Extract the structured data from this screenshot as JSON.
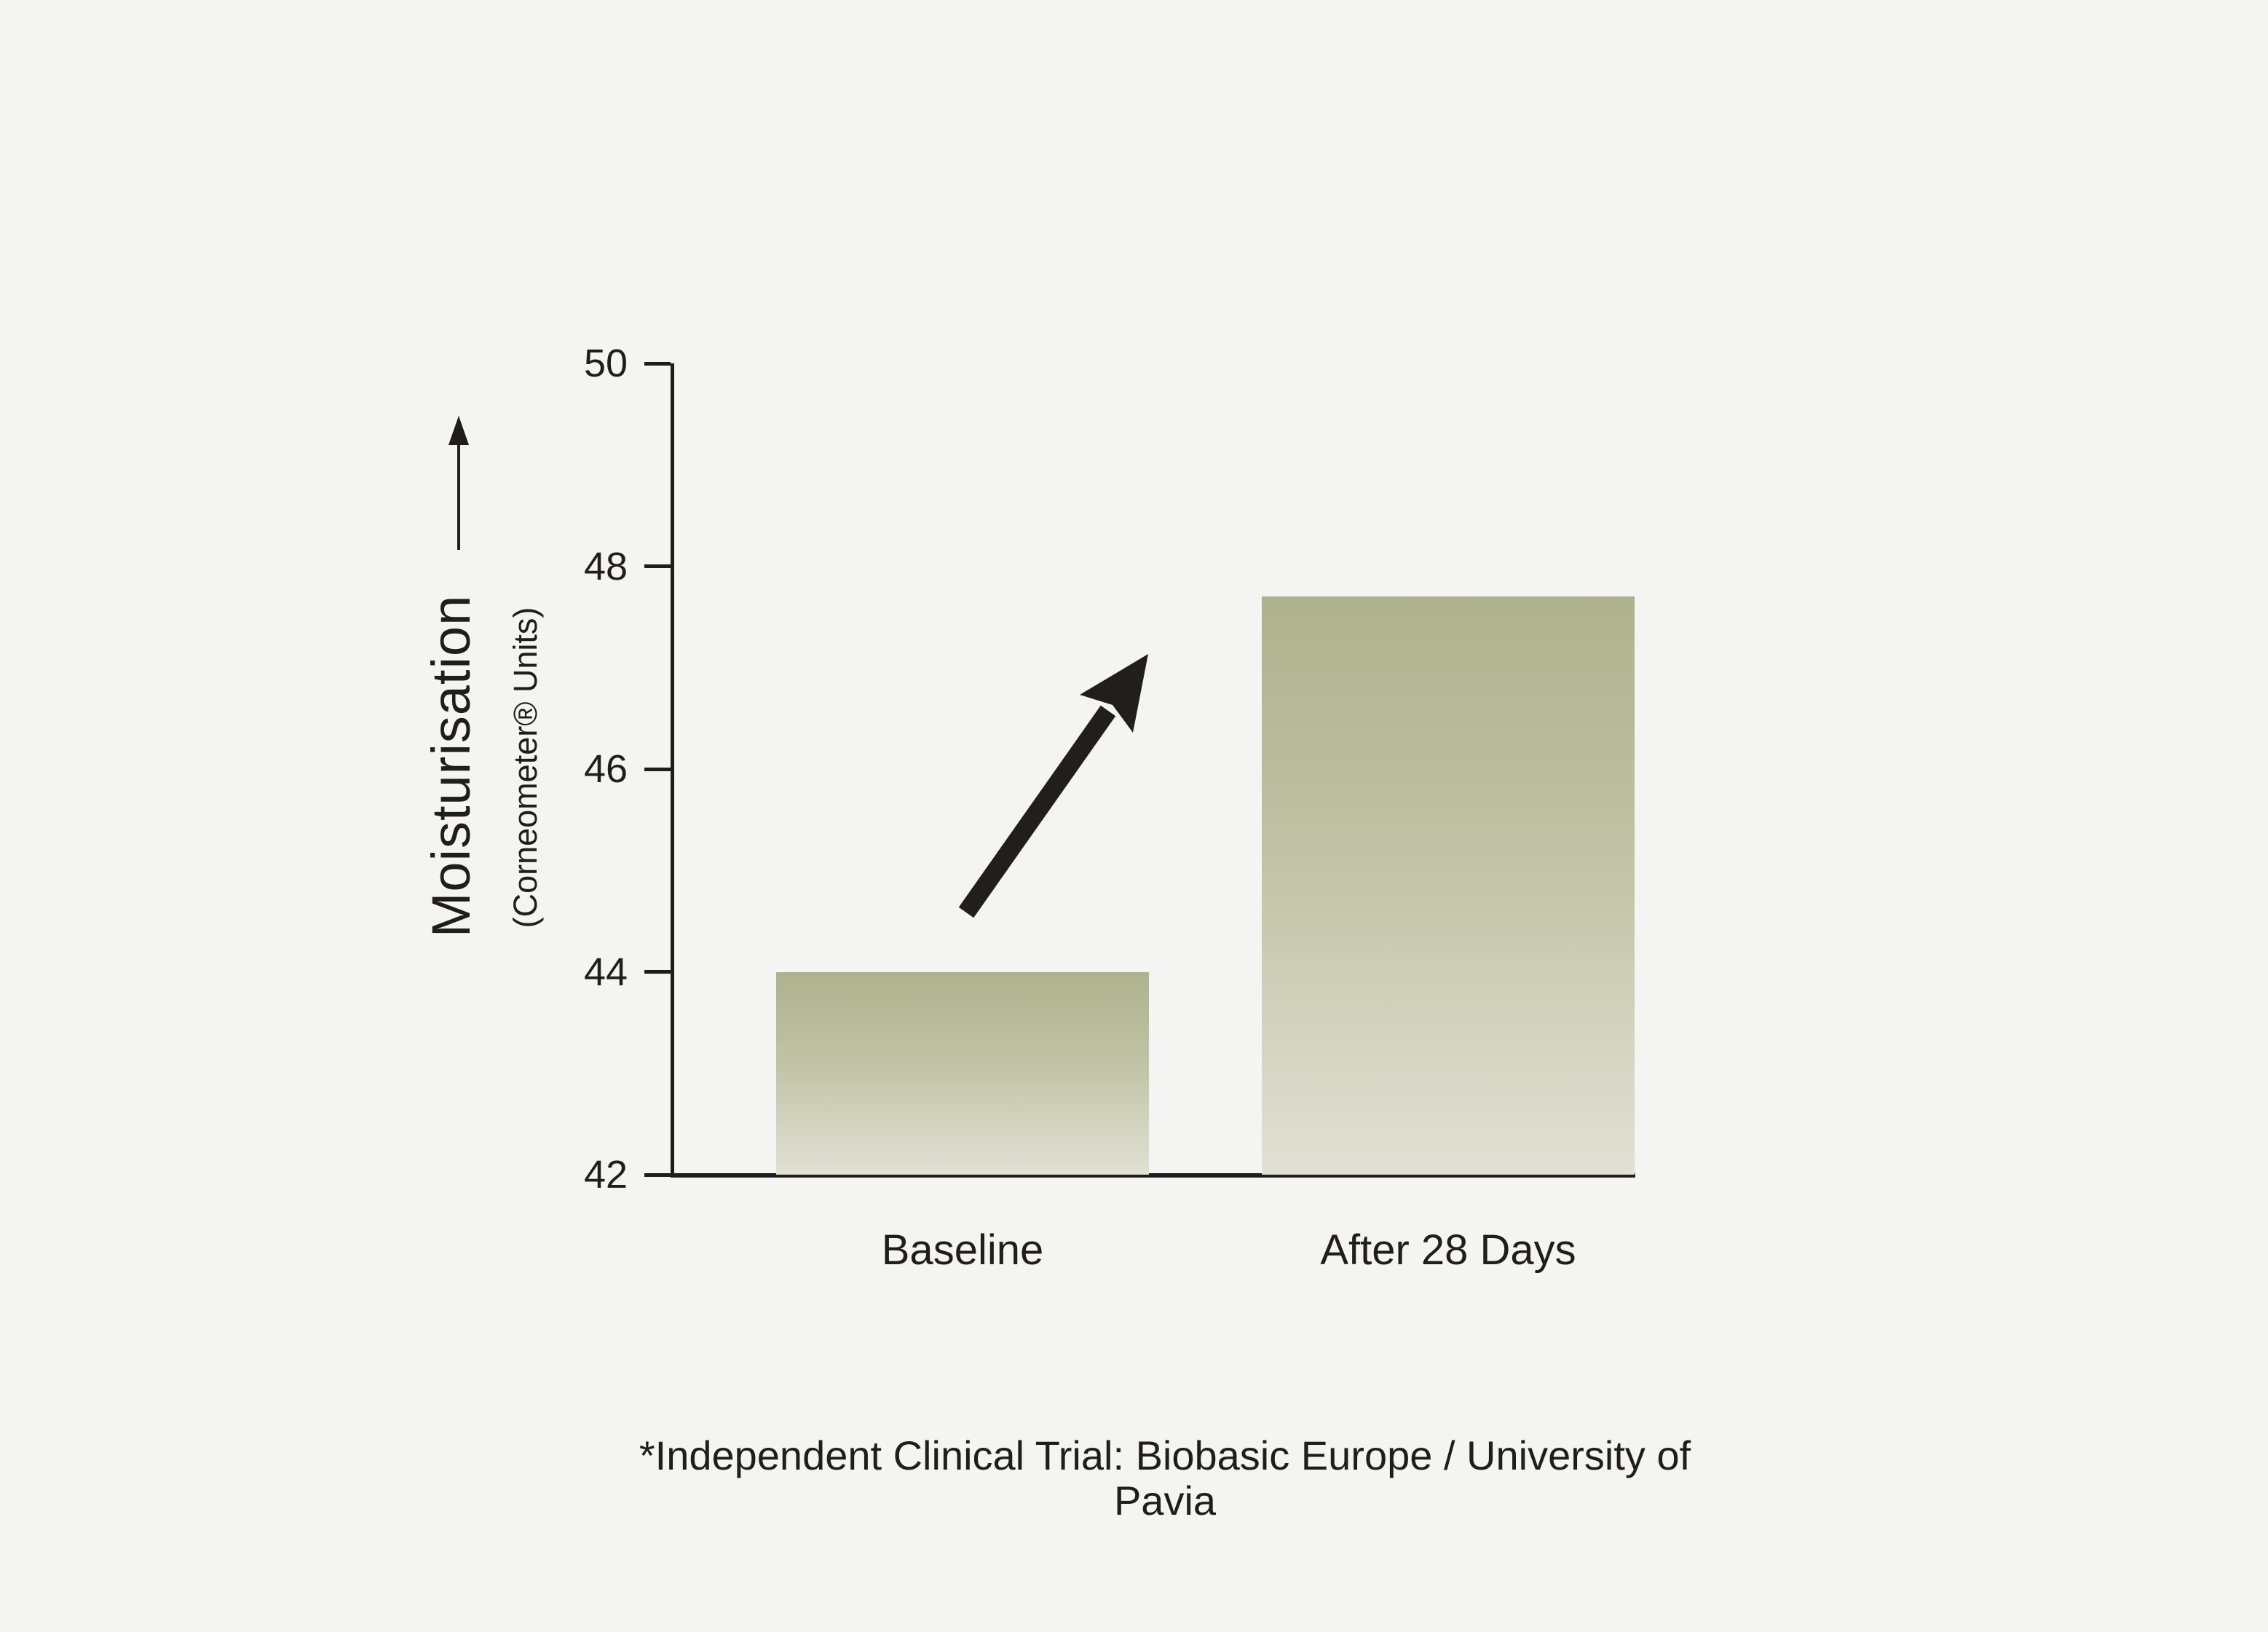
{
  "page": {
    "background_color": "#f4f4f2",
    "text_color": "#201d1b",
    "axis_color": "#1f1c1a"
  },
  "chart_data": {
    "type": "bar",
    "categories": [
      "Baseline",
      "After 28 Days"
    ],
    "values": [
      44,
      47.7
    ],
    "title": "",
    "xlabel": "",
    "ylabel": "Moisturisation",
    "ylabel_sub": "(Corneometer® Units)",
    "ylim": [
      42,
      50
    ],
    "yticks": [
      42,
      44,
      46,
      48,
      50
    ],
    "grid": false,
    "legend": "none",
    "bar_gradient_top": "#aeb28c",
    "bar_gradient_mid": "#c0c3a5",
    "bar_gradient_bottom": "#e1e1d4",
    "annotations": [
      "upward-trend-arrow between bars",
      "up-arrow beside y-axis label"
    ]
  },
  "footer": {
    "note": "*Independent Clinical Trial: Biobasic Europe / University of Pavia"
  }
}
